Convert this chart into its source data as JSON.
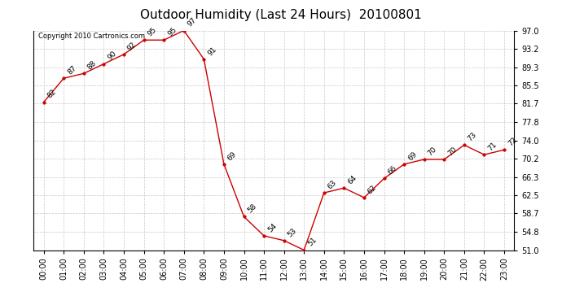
{
  "title": "Outdoor Humidity (Last 24 Hours)  20100801",
  "copyright_text": "Copyright 2010 Cartronics.com",
  "x_labels": [
    "00:00",
    "01:00",
    "02:00",
    "03:00",
    "04:00",
    "05:00",
    "06:00",
    "07:00",
    "08:00",
    "09:00",
    "10:00",
    "11:00",
    "12:00",
    "13:00",
    "14:00",
    "15:00",
    "16:00",
    "17:00",
    "18:00",
    "19:00",
    "20:00",
    "21:00",
    "22:00",
    "23:00"
  ],
  "y_values": [
    82,
    87,
    88,
    90,
    92,
    95,
    95,
    97,
    91,
    69,
    58,
    54,
    53,
    51,
    63,
    64,
    62,
    66,
    69,
    70,
    70,
    73,
    71,
    72
  ],
  "y_labels": [
    "97.0",
    "93.2",
    "89.3",
    "85.5",
    "81.7",
    "77.8",
    "74.0",
    "70.2",
    "66.3",
    "62.5",
    "58.7",
    "54.8",
    "51.0"
  ],
  "y_ticks": [
    97.0,
    93.2,
    89.3,
    85.5,
    81.7,
    77.8,
    74.0,
    70.2,
    66.3,
    62.5,
    58.7,
    54.8,
    51.0
  ],
  "ylim": [
    51.0,
    97.0
  ],
  "line_color": "#cc0000",
  "marker_color": "#cc0000",
  "background_color": "#ffffff",
  "grid_color": "#c8c8c8",
  "title_fontsize": 11,
  "annotation_fontsize": 6.5,
  "tick_fontsize": 7,
  "copyright_fontsize": 6
}
